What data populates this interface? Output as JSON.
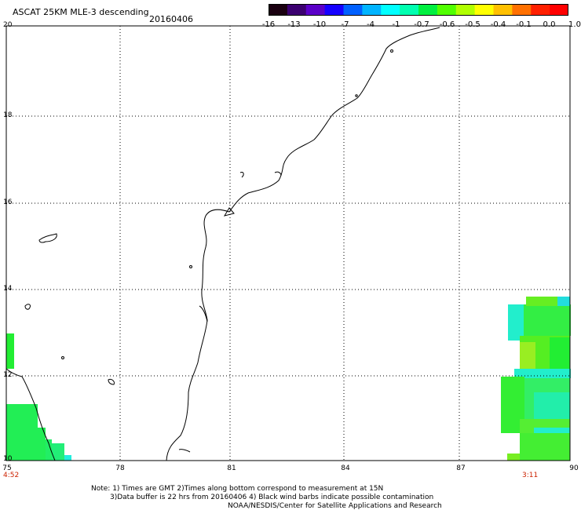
{
  "header": {
    "title": "ASCAT 25KM MLE-3 descending",
    "date": "20160406"
  },
  "colorbar": {
    "labels": [
      "-16",
      "-13",
      "-10",
      "-7",
      "-4",
      "-1",
      "-0.7",
      "-0.6",
      "-0.5",
      "-0.4",
      "-0.1",
      "0.0",
      "1.0"
    ],
    "colors": [
      "#1a0010",
      "#3b0070",
      "#5a00c8",
      "#1500ff",
      "#0060ff",
      "#00b4ff",
      "#00ffff",
      "#00ffb0",
      "#00f040",
      "#50ff00",
      "#b0ff00",
      "#ffff00",
      "#ffc000",
      "#ff7000",
      "#ff2000",
      "#ff0000"
    ]
  },
  "map": {
    "y_ticks": [
      "20",
      "18",
      "16",
      "14",
      "12",
      "10"
    ],
    "x_ticks": [
      "75",
      "78",
      "81",
      "84",
      "87",
      "90"
    ],
    "lon_range": [
      75,
      90
    ],
    "lat_range": [
      10,
      20
    ],
    "time_left": "4:52",
    "time_right": "3:11"
  },
  "notes": [
    "Note: 1) Times are GMT 2)Times along bottom correspond to measurement at 15N",
    "3)Data buffer is 22 hrs from 20160406 4) Black wind barbs indicate possible contamination",
    "NOAA/NESDIS/Center for Satellite Applications and Research"
  ]
}
